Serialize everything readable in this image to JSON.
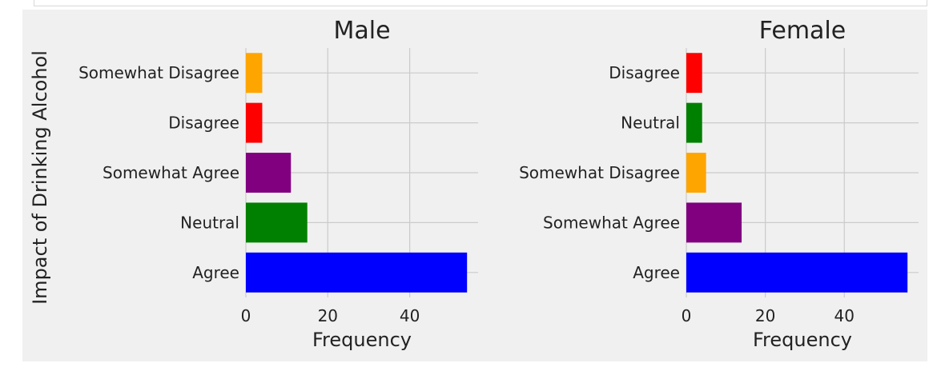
{
  "colors": {
    "background": "#f0f0f0",
    "grid": "#cbcbcb",
    "text": "#222222",
    "Agree": "#0000ff",
    "Neutral": "#008000",
    "Somewhat Agree": "#800080",
    "Disagree": "#ff0000",
    "Somewhat Disagree": "#ffa500"
  },
  "shared_ylabel": "Impact of Drinking Alcohol",
  "chart_data": [
    {
      "type": "bar",
      "orientation": "horizontal",
      "title": "Male",
      "xlabel": "Frequency",
      "ylabel": "Impact of Drinking Alcohol",
      "categories": [
        "Agree",
        "Neutral",
        "Somewhat Agree",
        "Disagree",
        "Somewhat Disagree"
      ],
      "values": [
        54,
        15,
        11,
        4,
        4
      ],
      "xlim": [
        0,
        56.7
      ],
      "xticks": [
        0,
        20,
        40
      ],
      "grid": true
    },
    {
      "type": "bar",
      "orientation": "horizontal",
      "title": "Female",
      "xlabel": "Frequency",
      "ylabel": "",
      "categories": [
        "Agree",
        "Somewhat Agree",
        "Somewhat Disagree",
        "Neutral",
        "Disagree"
      ],
      "values": [
        56,
        14,
        5,
        4,
        4
      ],
      "xlim": [
        0,
        58.8
      ],
      "xticks": [
        0,
        20,
        40
      ],
      "grid": true
    }
  ]
}
